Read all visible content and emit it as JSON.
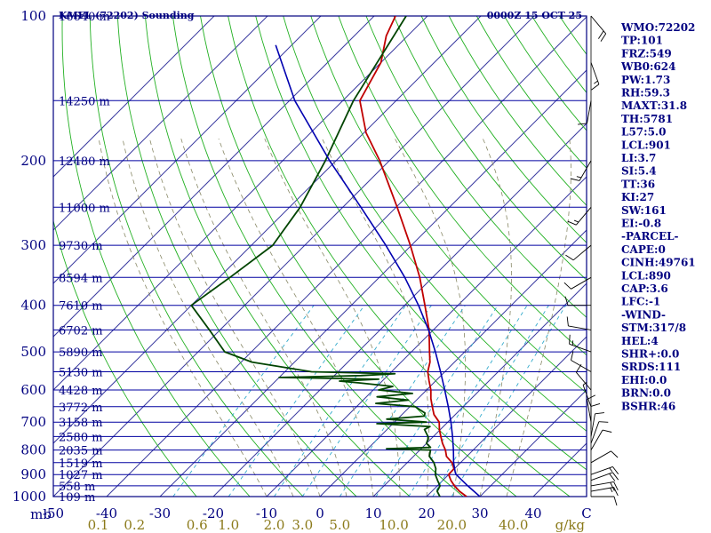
{
  "header": {
    "station": "KMFL (72202) Sounding",
    "time": "0000Z 15 OCT 25"
  },
  "indices": [
    "WMO:72202",
    "TP:101",
    "FRZ:549",
    "WB0:624",
    "PW:1.73",
    "RH:59.3",
    "MAXT:31.8",
    "TH:5781",
    "L57:5.0",
    "LCL:901",
    "LI:3.7",
    "SI:5.4",
    "TT:36",
    "KI:27",
    "SW:161",
    "EI:-0.8",
    "-PARCEL-",
    "CAPE:0",
    "CINH:49761",
    "LCL:890",
    "CAP:3.6",
    "LFC:-1",
    "-WIND-",
    "STM:317/8",
    "HEL:4",
    "SHR+:0.0",
    "SRDS:111",
    "EHI:0.0",
    "BRN:0.0",
    "BSHR:46"
  ],
  "colors": {
    "isobar": "#0000a0",
    "isotherm": "#3a3aa0",
    "dry_adiabat": "#22b022",
    "moist_adiabat": "#888866",
    "mixing_ratio": "#33aacc",
    "temperature": "#c00000",
    "dewpoint": "#004400",
    "parcel": "#0000b0",
    "wind": "#000000"
  },
  "chart_data": {
    "type": "skew-t",
    "title": "KMFL (72202) Sounding 0000Z 15 OCT 25",
    "xlabel": "C",
    "pressure_unit": "mb",
    "mixing_ratio_unit": "g/kg",
    "pressure_range": [
      1000,
      100
    ],
    "temperature_range_at_base": [
      -50,
      50
    ],
    "isobars": [
      1000,
      950,
      900,
      850,
      800,
      750,
      700,
      650,
      600,
      550,
      500,
      450,
      400,
      350,
      300,
      250,
      200,
      150,
      100
    ],
    "pressure_tick_labels": [
      "100",
      "200",
      "300",
      "400",
      "500",
      "600",
      "700",
      "800",
      "900",
      "1000"
    ],
    "height_labels": [
      {
        "p": 100,
        "label": "16640 m"
      },
      {
        "p": 150,
        "label": "14250 m"
      },
      {
        "p": 200,
        "label": "12480 m"
      },
      {
        "p": 250,
        "label": "11000 m"
      },
      {
        "p": 300,
        "label": "9730 m"
      },
      {
        "p": 350,
        "label": "8594 m"
      },
      {
        "p": 400,
        "label": "7610 m"
      },
      {
        "p": 450,
        "label": "6702 m"
      },
      {
        "p": 500,
        "label": "5890 m"
      },
      {
        "p": 550,
        "label": "5130 m"
      },
      {
        "p": 600,
        "label": "4428 m"
      },
      {
        "p": 650,
        "label": "3772 m"
      },
      {
        "p": 700,
        "label": "3158 m"
      },
      {
        "p": 750,
        "label": "2580 m"
      },
      {
        "p": 800,
        "label": "2035 m"
      },
      {
        "p": 850,
        "label": "1519 m"
      },
      {
        "p": 900,
        "label": "1027 m"
      },
      {
        "p": 950,
        "label": "558 m"
      },
      {
        "p": 1000,
        "label": "109 m"
      }
    ],
    "temperature_tick_labels": [
      "-50",
      "-40",
      "-30",
      "-20",
      "-10",
      "0",
      "10",
      "20",
      "30",
      "40",
      "C"
    ],
    "temperature_tick_values": [
      -50,
      -40,
      -30,
      -20,
      -10,
      0,
      10,
      20,
      30,
      40,
      50
    ],
    "mixing_ratio_labels": [
      "0.1",
      "0.2",
      "0.6",
      "1.0",
      "2.0",
      "3.0",
      "5.0",
      "10.0",
      "20.0",
      "40.0",
      "g/kg"
    ],
    "mixing_ratio_values": [
      0.1,
      0.2,
      0.6,
      1.0,
      2.0,
      3.0,
      5.0,
      10.0,
      20.0,
      40.0
    ],
    "mixing_ratio_lines": [
      0.4,
      1,
      2,
      3,
      5,
      8,
      12,
      16,
      20
    ],
    "isotherm_min": -110,
    "isotherm_max": 50,
    "isotherm_step": 10,
    "dry_adiabats_theta": [
      250,
      260,
      270,
      280,
      290,
      300,
      310,
      320,
      330,
      340,
      350,
      360,
      370,
      380,
      390,
      400,
      410,
      420,
      430,
      440,
      450,
      460,
      470,
      480,
      490,
      500,
      510,
      520,
      540,
      560
    ],
    "moist_adiabats_start_t": [
      -10,
      -5,
      0,
      5,
      10,
      15,
      20,
      25,
      30,
      35
    ],
    "series": [
      {
        "name": "temperature",
        "points": [
          [
            1000,
            27.5
          ],
          [
            975,
            25.2
          ],
          [
            950,
            23.2
          ],
          [
            925,
            21.5
          ],
          [
            900,
            20.0
          ],
          [
            875,
            19.9
          ],
          [
            850,
            18.4
          ],
          [
            825,
            16.2
          ],
          [
            800,
            14.8
          ],
          [
            775,
            13.0
          ],
          [
            750,
            11.4
          ],
          [
            725,
            9.8
          ],
          [
            700,
            8.4
          ],
          [
            675,
            6.0
          ],
          [
            650,
            4.2
          ],
          [
            625,
            2.4
          ],
          [
            600,
            0.8
          ],
          [
            575,
            -1.2
          ],
          [
            550,
            -3.2
          ],
          [
            525,
            -4.6
          ],
          [
            500,
            -6.6
          ],
          [
            450,
            -10.8
          ],
          [
            400,
            -16.2
          ],
          [
            350,
            -22.4
          ],
          [
            300,
            -30.2
          ],
          [
            250,
            -39.8
          ],
          [
            200,
            -51.8
          ],
          [
            175,
            -59.6
          ],
          [
            150,
            -66.8
          ],
          [
            125,
            -70.0
          ],
          [
            110,
            -74.0
          ],
          [
            100,
            -76.0
          ]
        ]
      },
      {
        "name": "dewpoint",
        "points": [
          [
            1000,
            22.5
          ],
          [
            975,
            21.0
          ],
          [
            950,
            20.5
          ],
          [
            925,
            19.0
          ],
          [
            900,
            17.5
          ],
          [
            875,
            16.5
          ],
          [
            850,
            15.0
          ],
          [
            825,
            13.0
          ],
          [
            800,
            12.0
          ],
          [
            795,
            3.5
          ],
          [
            790,
            11.5
          ],
          [
            775,
            10.0
          ],
          [
            760,
            9.5
          ],
          [
            750,
            9.0
          ],
          [
            725,
            7.0
          ],
          [
            715,
            7.5
          ],
          [
            705,
            -3.0
          ],
          [
            700,
            6.0
          ],
          [
            690,
            -2.0
          ],
          [
            680,
            4.5
          ],
          [
            670,
            4.0
          ],
          [
            660,
            2.5
          ],
          [
            650,
            1.0
          ],
          [
            640,
            -7.0
          ],
          [
            630,
            -1.5
          ],
          [
            620,
            -8.0
          ],
          [
            610,
            -2.0
          ],
          [
            600,
            -9.0
          ],
          [
            590,
            -7.0
          ],
          [
            580,
            -14.0
          ],
          [
            575,
            -18.0
          ],
          [
            570,
            -11.0
          ],
          [
            565,
            -30.0
          ],
          [
            560,
            -15.0
          ],
          [
            555,
            -9.0
          ],
          [
            550,
            -25.0
          ],
          [
            525,
            -38.0
          ],
          [
            500,
            -45.0
          ],
          [
            450,
            -52.0
          ],
          [
            400,
            -60.0
          ],
          [
            350,
            -58.0
          ],
          [
            300,
            -56.0
          ],
          [
            250,
            -58.0
          ],
          [
            200,
            -62.0
          ],
          [
            150,
            -68.0
          ],
          [
            100,
            -74.0
          ]
        ]
      },
      {
        "name": "parcel",
        "points": [
          [
            1000,
            30.0
          ],
          [
            950,
            25.7
          ],
          [
            900,
            21.4
          ],
          [
            890,
            20.8
          ],
          [
            850,
            18.7
          ],
          [
            800,
            16.3
          ],
          [
            750,
            13.6
          ],
          [
            700,
            10.6
          ],
          [
            650,
            7.2
          ],
          [
            600,
            3.4
          ],
          [
            550,
            -0.8
          ],
          [
            500,
            -5.5
          ],
          [
            450,
            -10.9
          ],
          [
            400,
            -17.4
          ],
          [
            350,
            -25.2
          ],
          [
            300,
            -34.8
          ],
          [
            250,
            -46.6
          ],
          [
            200,
            -61.2
          ],
          [
            150,
            -79.0
          ],
          [
            115,
            -93.0
          ]
        ]
      }
    ],
    "wind_barbs": [
      {
        "p": 1000,
        "dir": 90,
        "spd": 10
      },
      {
        "p": 975,
        "dir": 80,
        "spd": 15
      },
      {
        "p": 950,
        "dir": 80,
        "spd": 20
      },
      {
        "p": 925,
        "dir": 70,
        "spd": 20
      },
      {
        "p": 900,
        "dir": 70,
        "spd": 15
      },
      {
        "p": 850,
        "dir": 60,
        "spd": 10
      },
      {
        "p": 800,
        "dir": 30,
        "spd": 10
      },
      {
        "p": 775,
        "dir": 20,
        "spd": 10
      },
      {
        "p": 750,
        "dir": 10,
        "spd": 10
      },
      {
        "p": 725,
        "dir": 360,
        "spd": 10
      },
      {
        "p": 700,
        "dir": 350,
        "spd": 10
      },
      {
        "p": 650,
        "dir": 340,
        "spd": 5
      },
      {
        "p": 600,
        "dir": 320,
        "spd": 10
      },
      {
        "p": 550,
        "dir": 300,
        "spd": 10
      },
      {
        "p": 500,
        "dir": 290,
        "spd": 15
      },
      {
        "p": 450,
        "dir": 280,
        "spd": 10
      },
      {
        "p": 400,
        "dir": 270,
        "spd": 10
      },
      {
        "p": 350,
        "dir": 240,
        "spd": 10
      },
      {
        "p": 300,
        "dir": 230,
        "spd": 10
      },
      {
        "p": 250,
        "dir": 220,
        "spd": 15
      },
      {
        "p": 200,
        "dir": 210,
        "spd": 15
      },
      {
        "p": 150,
        "dir": 190,
        "spd": 10
      },
      {
        "p": 125,
        "dir": 160,
        "spd": 15
      },
      {
        "p": 100,
        "dir": 140,
        "spd": 20
      }
    ]
  }
}
